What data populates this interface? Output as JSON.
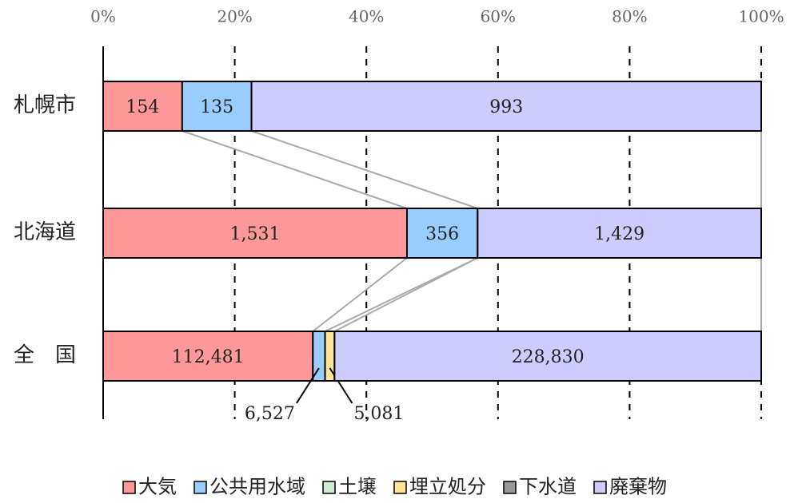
{
  "chart_data": {
    "type": "stacked-bar-100",
    "orientation": "horizontal",
    "categories": [
      "札幌市",
      "北海道",
      "全　国"
    ],
    "series": [
      {
        "name": "大気",
        "color": "#ff9999",
        "values": [
          154,
          1531,
          112481
        ],
        "value_labels": [
          "154",
          "1,531",
          "112,481"
        ]
      },
      {
        "name": "公共用水域",
        "color": "#99ccff",
        "values": [
          135,
          356,
          6527
        ],
        "value_labels": [
          "135",
          "356",
          "6,527"
        ]
      },
      {
        "name": "土壌",
        "color": "#cceecc",
        "values": [
          0,
          0,
          0
        ],
        "value_labels": [
          null,
          null,
          null
        ]
      },
      {
        "name": "埋立処分",
        "color": "#ffe699",
        "values": [
          0,
          0,
          5081
        ],
        "value_labels": [
          null,
          null,
          "5,081"
        ]
      },
      {
        "name": "下水道",
        "color": "#999999",
        "values": [
          0,
          0,
          0
        ],
        "value_labels": [
          null,
          null,
          null
        ]
      },
      {
        "name": "廃棄物",
        "color": "#ccccff",
        "values": [
          993,
          1429,
          228830
        ],
        "value_labels": [
          "993",
          "1,429",
          "228,830"
        ]
      }
    ],
    "xlim": [
      0,
      100
    ],
    "xticks": [
      {
        "value": 0,
        "label": "0%"
      },
      {
        "value": 20,
        "label": "20%"
      },
      {
        "value": 40,
        "label": "40%"
      },
      {
        "value": 60,
        "label": "60%"
      },
      {
        "value": 80,
        "label": "80%"
      },
      {
        "value": 100,
        "label": "100%"
      }
    ],
    "grid": true,
    "legend": "bottom"
  }
}
